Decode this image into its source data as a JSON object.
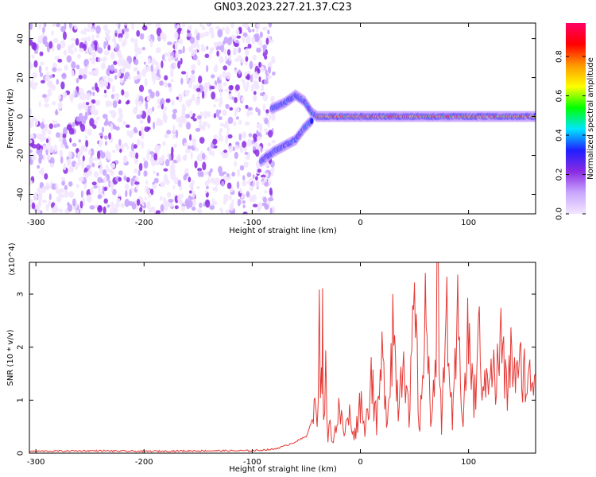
{
  "title": "GN03.2023.227.21.37.C23",
  "colors": {
    "snr_line": "#e53935",
    "axis": "#000000",
    "colormap": [
      "#f2e6ff",
      "#c9a6ff",
      "#8a2be2",
      "#1f1fff",
      "#00e5ff",
      "#00ff00",
      "#ffff00",
      "#ff9900",
      "#ff0000",
      "#ff0066"
    ]
  },
  "chart_data": [
    {
      "type": "heatmap",
      "title": "",
      "xlabel": "Height of straight line (km)",
      "ylabel": "Frequency (Hz)",
      "xlim": [
        -306,
        162
      ],
      "ylim": [
        -50,
        48
      ],
      "x_ticks": [
        -300,
        -200,
        -100,
        0,
        100
      ],
      "y_ticks": [
        -40,
        -20,
        0,
        20,
        40
      ],
      "colorbar": {
        "label": "Normalized spectral amplitude",
        "range": [
          0.0,
          0.97
        ],
        "ticks": [
          0.0,
          0.2,
          0.4,
          0.6,
          0.8
        ]
      },
      "features": [
        {
          "name": "noise",
          "x_range": [
            -306,
            -80
          ],
          "freq_range": [
            -50,
            48
          ],
          "amplitude": 0.15
        },
        {
          "name": "upper branch",
          "points": [
            [
              -82,
              4
            ],
            [
              -70,
              7
            ],
            [
              -60,
              11
            ],
            [
              -52,
              8
            ],
            [
              -45,
              2
            ],
            [
              -40,
              0
            ]
          ],
          "amplitude": 0.35
        },
        {
          "name": "lower branch",
          "points": [
            [
              -92,
              -23
            ],
            [
              -80,
              -18
            ],
            [
              -70,
              -15
            ],
            [
              -60,
              -12
            ],
            [
              -52,
              -6
            ],
            [
              -45,
              -2
            ]
          ],
          "amplitude": 0.3
        },
        {
          "name": "main band",
          "points": [
            [
              -40,
              0
            ],
            [
              0,
              0
            ],
            [
              40,
              0
            ],
            [
              80,
              0
            ],
            [
              120,
              0
            ],
            [
              162,
              0
            ]
          ],
          "amplitude": 0.75
        }
      ]
    },
    {
      "type": "line",
      "title": "",
      "xlabel": "Height of straight line (km)",
      "ylabel": "SNR (10 * v/v)",
      "y_multiplier": "(x10^4)",
      "xlim": [
        -306,
        162
      ],
      "ylim": [
        0,
        3.6
      ],
      "x_ticks": [
        -300,
        -200,
        -100,
        0,
        100
      ],
      "y_ticks": [
        0,
        1,
        2,
        3
      ],
      "series": [
        {
          "x": [
            -306,
            -250,
            -200,
            -150,
            -100,
            -80,
            -70,
            -60,
            -50,
            -45,
            -42,
            -40,
            -38,
            -36,
            -35,
            -34,
            -32,
            -30,
            -28,
            -25,
            -20,
            -15,
            -10,
            -5,
            0,
            5,
            10,
            15,
            20,
            25,
            30,
            35,
            40,
            45,
            50,
            55,
            60,
            65,
            70,
            72,
            75,
            80,
            85,
            90,
            95,
            100,
            105,
            110,
            115,
            120,
            125,
            130,
            135,
            140,
            145,
            150,
            155,
            160,
            162
          ],
          "y": [
            0.02,
            0.03,
            0.02,
            0.03,
            0.03,
            0.06,
            0.12,
            0.2,
            0.3,
            0.6,
            0.9,
            0.4,
            2.3,
            1.2,
            2.6,
            0.8,
            1.4,
            0.3,
            0.5,
            0.25,
            0.8,
            0.4,
            0.7,
            0.35,
            1.0,
            0.45,
            1.6,
            0.5,
            1.7,
            0.7,
            2.5,
            0.9,
            2.2,
            0.5,
            2.8,
            0.3,
            3.1,
            0.4,
            2.5,
            3.6,
            0.3,
            2.8,
            0.4,
            2.4,
            0.7,
            2.3,
            0.9,
            2.1,
            1.1,
            2.0,
            1.2,
            2.2,
            1.1,
            1.9,
            1.3,
            1.7,
            1.2,
            1.6,
            1.5
          ]
        }
      ]
    }
  ]
}
